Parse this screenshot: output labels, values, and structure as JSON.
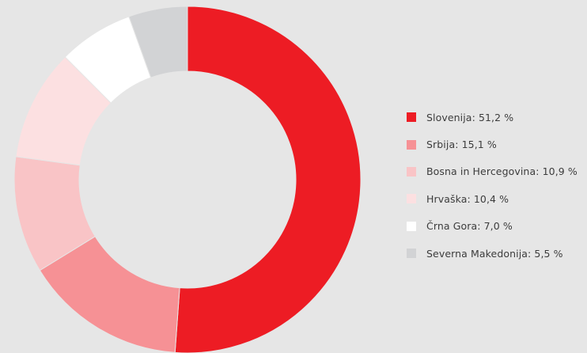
{
  "chart_data": {
    "type": "pie",
    "donut": true,
    "legend_position": "right",
    "slices": [
      {
        "label": "Slovenija",
        "value": 51.2,
        "color": "#ed1c24",
        "legend_text": "Slovenija: 51,2 %"
      },
      {
        "label": "Srbija",
        "value": 15.1,
        "color": "#f69195",
        "legend_text": "Srbija: 15,1 %"
      },
      {
        "label": "Bosna in Hercegovina",
        "value": 10.9,
        "color": "#f9c4c6",
        "legend_text": "Bosna in Hercegovina: 10,9 %"
      },
      {
        "label": "Hrvaška",
        "value": 10.4,
        "color": "#fce0e1",
        "legend_text": "Hrvaška: 10,4 %"
      },
      {
        "label": "Črna Gora",
        "value": 7.0,
        "color": "#ffffff",
        "legend_text": "Črna Gora: 7,0 %"
      },
      {
        "label": "Severna Makedonija",
        "value": 5.5,
        "color": "#d2d3d5",
        "legend_text": "Severna Makedonija: 5,5 %"
      }
    ]
  }
}
